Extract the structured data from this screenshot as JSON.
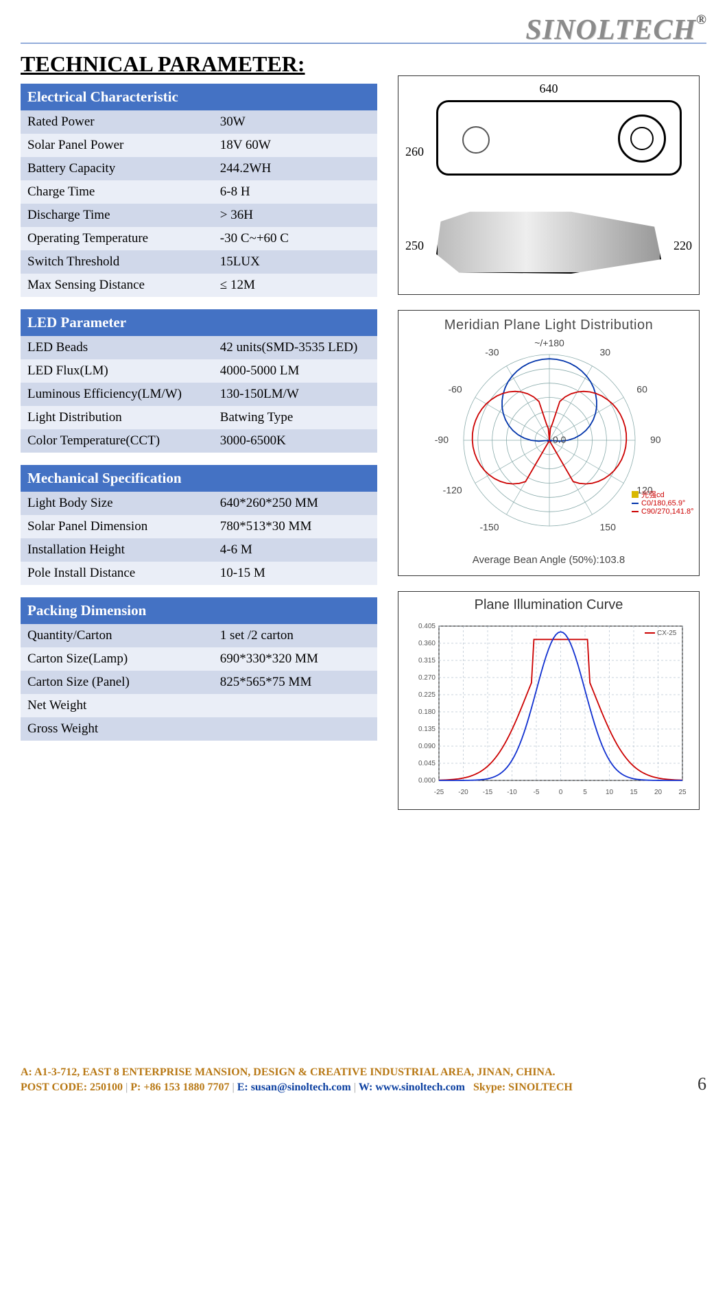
{
  "brand": {
    "name": "SINOLTECH",
    "registered": "®"
  },
  "page_title": "TECHNICAL PARAMETER:",
  "sections": {
    "electrical": {
      "header": "Electrical Characteristic",
      "rows": [
        {
          "label": "Rated Power",
          "value": "30W"
        },
        {
          "label": "Solar Panel Power",
          "value": "18V 60W"
        },
        {
          "label": "Battery Capacity",
          "value": "244.2WH"
        },
        {
          "label": "Charge Time",
          "value": "6-8 H"
        },
        {
          "label": "Discharge Time",
          "value": "> 36H"
        },
        {
          "label": "Operating Temperature",
          "value": "-30 C~+60 C"
        },
        {
          "label": "Switch Threshold",
          "value": "15LUX"
        },
        {
          "label": "Max Sensing Distance",
          "value": "≤ 12M"
        }
      ]
    },
    "led": {
      "header": "LED Parameter",
      "rows": [
        {
          "label": "LED Beads",
          "value": "42 units(SMD-3535 LED)"
        },
        {
          "label": "LED Flux(LM)",
          "value": "4000-5000 LM"
        },
        {
          "label": "Luminous Efficiency(LM/W)",
          "value": "130-150LM/W"
        },
        {
          "label": "Light Distribution",
          "value": "Batwing Type"
        },
        {
          "label": "Color Temperature(CCT)",
          "value": "3000-6500K"
        }
      ]
    },
    "mechanical": {
      "header": "Mechanical Specification",
      "rows": [
        {
          "label": "Light Body Size",
          "value": "640*260*250 MM"
        },
        {
          "label": "Solar Panel Dimension",
          "value": "780*513*30 MM"
        },
        {
          "label": "Installation Height",
          "value": "4-6 M"
        },
        {
          "label": "Pole Install Distance",
          "value": "10-15 M"
        }
      ]
    },
    "packing": {
      "header": "Packing Dimension",
      "rows": [
        {
          "label": "Quantity/Carton",
          "value": "1 set /2 carton"
        },
        {
          "label": "Carton Size(Lamp)",
          "value": "690*330*320 MM"
        },
        {
          "label": "Carton Size (Panel)",
          "value": "825*565*75 MM"
        },
        {
          "label": "Net Weight",
          "value": ""
        },
        {
          "label": "Gross Weight",
          "value": ""
        }
      ]
    }
  },
  "dimensions_diagram": {
    "width_label": "640",
    "height_label": "260",
    "depth_label": "250",
    "side_height_label": "220"
  },
  "polar": {
    "title": "Meridian Plane Light Distribution",
    "top_label": "~/+180",
    "angle_labels": [
      -150,
      -120,
      -90,
      -60,
      -30,
      150,
      120,
      90,
      60,
      30
    ],
    "rings": 6,
    "ring_step": 100,
    "legend1_color": "#d9b800",
    "legend1_text": "光强cd",
    "legend2_color": "#cc0000",
    "legend2a": "C0/180,65.9°",
    "legend2b": "C90/270,141.8°",
    "ring_values": [
      "100",
      "350",
      "520",
      "650"
    ],
    "footer": "Average Bean Angle (50%):103.8",
    "c0_color": "#0033aa",
    "c90_color": "#cc0000",
    "grid_color": "#8aa"
  },
  "curve": {
    "title": "Plane Illumination Curve",
    "x_range": [
      -25,
      25
    ],
    "x_ticks": [
      -25,
      -20,
      -15,
      -10,
      -5,
      0,
      5,
      10,
      15,
      20,
      25
    ],
    "y_ticks": [
      0,
      0.045,
      0.09,
      0.135,
      0.18,
      0.225,
      0.27,
      0.315,
      0.36,
      0.405
    ],
    "legend_label": "CX-25",
    "series1_color": "#cc0000",
    "series2_color": "#1030d0",
    "grid_color": "#94a7b8",
    "background": "#ffffff"
  },
  "footer": {
    "line1": "A: A1-3-712, EAST 8 ENTERPRISE MANSION, DESIGN & CREATIVE INDUSTRIAL AREA, JINAN, CHINA.",
    "line2_a": "POST CODE: 250100",
    "line2_b": "P: +86 153 1880 7707",
    "line2_c": "E: susan@sinoltech.com",
    "line2_d": "W: www.sinoltech.com",
    "line2_e": "Skype: SINOLTECH",
    "page_number": "6"
  },
  "colors": {
    "section_header_bg": "#4472c4",
    "row_odd_bg": "#d0d8ea",
    "row_even_bg": "#eaeef7"
  }
}
